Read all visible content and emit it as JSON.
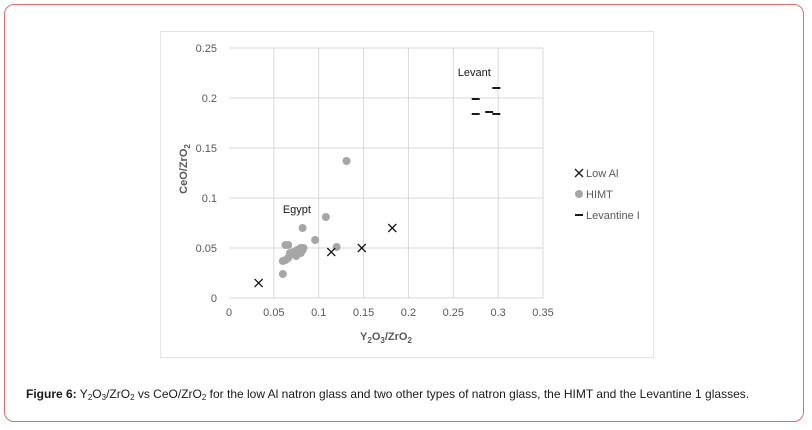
{
  "chart_data": {
    "type": "scatter",
    "x_axis": {
      "label": "Y2O3/ZrO2",
      "label_base": "Y",
      "label_sub1": "2",
      "label_mid": "O",
      "label_sub2": "3",
      "label_end": "/ZrO",
      "label_sub3": "2",
      "range": [
        0,
        0.35
      ],
      "ticks": [
        "0",
        "0.05",
        "0.1",
        "0.15",
        "0.2",
        "0.25",
        "0.3",
        "0.35"
      ],
      "tick_values": [
        0,
        0.05,
        0.1,
        0.15,
        0.2,
        0.25,
        0.3,
        0.35
      ]
    },
    "y_axis": {
      "label": "CeO/ZrO2",
      "label_main": "CeO/ZrO",
      "label_sub": "2",
      "range": [
        0,
        0.25
      ],
      "ticks": [
        "0",
        "0.05",
        "0.1",
        "0.15",
        "0.2",
        "0.25"
      ],
      "tick_values": [
        0,
        0.05,
        0.1,
        0.15,
        0.2,
        0.25
      ]
    },
    "grid": {
      "vertical": true,
      "horizontal": true
    },
    "legend_position": "right",
    "series": [
      {
        "name": "Low Al",
        "marker": "x",
        "color": "#1a1a1a",
        "points": [
          [
            0.033,
            0.015
          ],
          [
            0.114,
            0.046
          ],
          [
            0.148,
            0.05
          ],
          [
            0.182,
            0.07
          ]
        ]
      },
      {
        "name": "HIMT",
        "marker": "circle",
        "color": "#a6a6a6",
        "points": [
          [
            0.06,
            0.024
          ],
          [
            0.06,
            0.037
          ],
          [
            0.063,
            0.038
          ],
          [
            0.063,
            0.053
          ],
          [
            0.066,
            0.053
          ],
          [
            0.066,
            0.04
          ],
          [
            0.068,
            0.045
          ],
          [
            0.07,
            0.044
          ],
          [
            0.072,
            0.046
          ],
          [
            0.074,
            0.045
          ],
          [
            0.075,
            0.042
          ],
          [
            0.076,
            0.048
          ],
          [
            0.078,
            0.047
          ],
          [
            0.08,
            0.045
          ],
          [
            0.08,
            0.05
          ],
          [
            0.082,
            0.048
          ],
          [
            0.083,
            0.05
          ],
          [
            0.082,
            0.07
          ],
          [
            0.096,
            0.058
          ],
          [
            0.108,
            0.081
          ],
          [
            0.12,
            0.051
          ],
          [
            0.131,
            0.137
          ]
        ]
      },
      {
        "name": "Levantine I",
        "marker": "dash",
        "color": "#1a1a1a",
        "points": [
          [
            0.275,
            0.199
          ],
          [
            0.275,
            0.184
          ],
          [
            0.29,
            0.186
          ],
          [
            0.298,
            0.21
          ],
          [
            0.298,
            0.184
          ]
        ]
      }
    ],
    "annotations": [
      {
        "text": "Egypt",
        "x": 0.06,
        "y": 0.085
      },
      {
        "text": "Levant",
        "x": 0.255,
        "y": 0.222
      }
    ]
  },
  "caption": {
    "label": "Figure 6:",
    "t1": "Y",
    "s1": "2",
    "t2": "O",
    "s2": "3",
    "t3": "/ZrO",
    "s3": "2",
    "t4": " vs CeO/ZrO",
    "s4": "2",
    "t5": " for the low Al natron glass and two other types of natron glass, the HIMT and the Levantine 1 glasses."
  }
}
